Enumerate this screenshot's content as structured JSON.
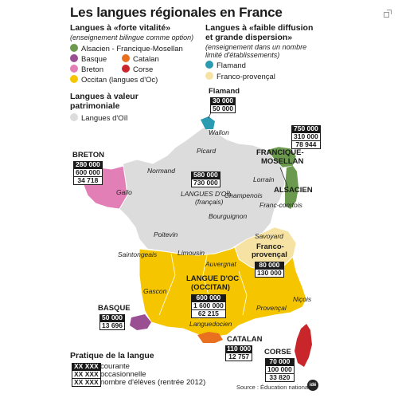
{
  "title": "Les langues régionales en France",
  "legend": {
    "strong": {
      "header": "Langues à «forte vitalité»",
      "sub": "(enseignement bilingue comme option)",
      "items": [
        {
          "label": "Alsacien - Francique-Mosellan",
          "color": "#6b9a4e"
        },
        {
          "label": "Basque",
          "color": "#9a4f93"
        },
        {
          "label": "Catalan",
          "color": "#e8701f"
        },
        {
          "label": "Breton",
          "color": "#e27fb6"
        },
        {
          "label": "Corse",
          "color": "#c8262b"
        },
        {
          "label": "Occitan (langues d'Oc)",
          "color": "#f5c600"
        }
      ]
    },
    "weak": {
      "header1": "Langues à «faible diffusion",
      "header2": "et grande dispersion»",
      "sub1": "(enseignement dans un nombre",
      "sub2": "limité d'établissements)",
      "items": [
        {
          "label": "Flamand",
          "color": "#2a9bb0"
        },
        {
          "label": "Franco-provençal",
          "color": "#f6e3a3"
        }
      ]
    },
    "heritage": {
      "header1": "Langues à valeur",
      "header2": "patrimoniale",
      "items": [
        {
          "label": "Langues d'Oïl",
          "color": "#dcdcdc"
        }
      ]
    }
  },
  "regions": {
    "flamand": {
      "name": "Flamand",
      "values": [
        "30 000",
        "50 000"
      ]
    },
    "breton": {
      "name": "BRETON",
      "values": [
        "280 000",
        "600 000",
        "34 718"
      ]
    },
    "francique": {
      "name1": "FRANCIQUE-",
      "name2": "MOSELLAN",
      "values": [
        "750 000",
        "310 000",
        "78 944"
      ]
    },
    "alsacien": {
      "name": "ALSACIEN"
    },
    "oil": {
      "name1": "LANGUES D'OÏL",
      "name2": "(français)",
      "values": [
        "580 000",
        "730 000"
      ]
    },
    "francoprovencal": {
      "name1": "Franco-",
      "name2": "provençal",
      "values": [
        "80 000",
        "130 000"
      ]
    },
    "occitan": {
      "name1": "LANGUE D'OC",
      "name2": "(OCCITAN)",
      "values": [
        "600 000",
        "1 600 000",
        "62 215"
      ]
    },
    "basque": {
      "name": "BASQUE",
      "values": [
        "50 000",
        "13 696"
      ]
    },
    "catalan": {
      "name": "CATALAN",
      "values": [
        "110 000",
        "12 757"
      ]
    },
    "corse": {
      "name": "CORSE",
      "values": [
        "70 000",
        "100 000",
        "33 820"
      ]
    }
  },
  "places": [
    "Wallon",
    "Picard",
    "Normand",
    "Lorrain",
    "Champenois",
    "Gallo",
    "Franc-comtois",
    "Bourguignon",
    "Poitevin",
    "Saintongeais",
    "Limousin",
    "Auvergnat",
    "Savoyard",
    "Gascon",
    "Provençal",
    "Niçois",
    "Languedocien"
  ],
  "practice": {
    "header": "Pratique de la langue",
    "placeholder": "XX XXX",
    "rows": [
      "courante",
      "occasionnelle",
      "nombre d'élèves (rentrée 2012)"
    ]
  },
  "source": "Source : Éducation nationale",
  "logo": "idé"
}
